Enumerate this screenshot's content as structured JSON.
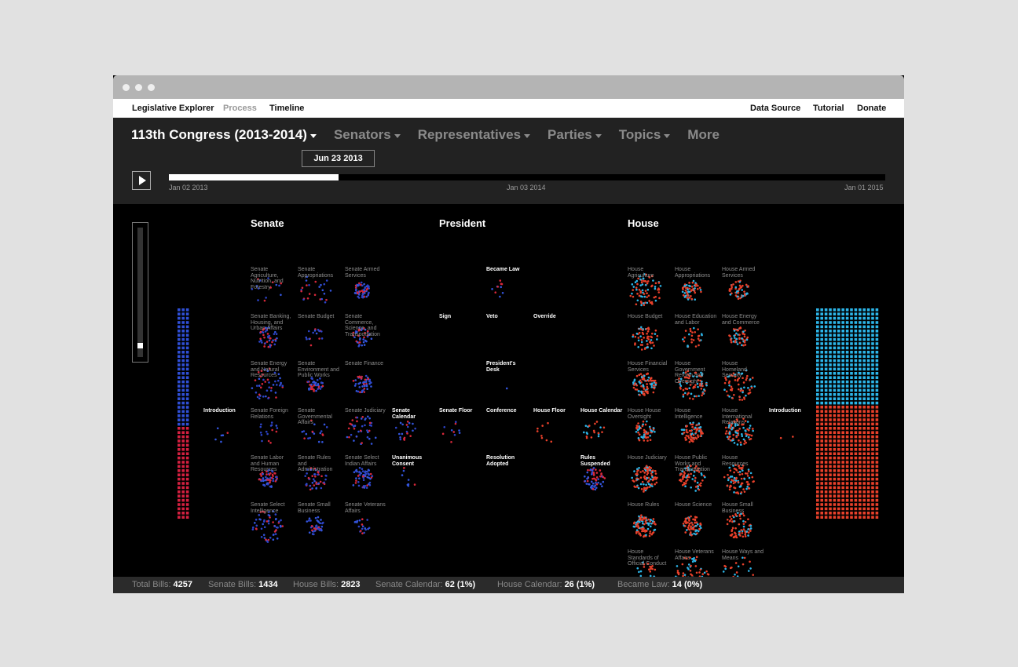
{
  "nav": {
    "left": [
      "Legislative Explorer",
      "Process",
      "Timeline"
    ],
    "right": [
      "Data Source",
      "Tutorial",
      "Donate"
    ]
  },
  "menu": [
    "113th Congress (2013-2014)",
    "Senators",
    "Representatives",
    "Parties",
    "Topics",
    "More"
  ],
  "timeline": {
    "current": "Jun 23 2013",
    "ticks": [
      "Jan 02 2013",
      "Jan 03 2014",
      "Jan 01 2015"
    ]
  },
  "sections": [
    "Senate",
    "President",
    "House"
  ],
  "senate_committees": [
    "Senate Agriculture, Nutrition, and Forestry",
    "Senate Appropriations",
    "Senate Armed Services",
    "Senate Banking, Housing, and Urban Affairs",
    "Senate Budget",
    "Senate Commerce, Science, and Transportation",
    "Senate Energy and Natural Resources",
    "Senate Environment and Public Works",
    "Senate Finance",
    "Senate Foreign Relations",
    "Senate Governmental Affairs",
    "Senate Judiciary",
    "Senate Labor and Human Resources",
    "Senate Rules and Administration",
    "Senate Select Indian Affairs",
    "Senate Select Intelligence",
    "Senate Small Business",
    "Senate Veterans Affairs"
  ],
  "stages": [
    "Introduction",
    "Senate Calendar",
    "Unanimous Consent",
    "Became Law",
    "Sign",
    "Veto",
    "Override",
    "President's Desk",
    "Senate Floor",
    "Conference",
    "House Floor",
    "House Calendar",
    "Resolution Adopted",
    "Rules Suspended",
    "Introduction"
  ],
  "house_committees": [
    "House Agriculture",
    "House Appropriations",
    "House Armed Services",
    "House Budget",
    "House Education and Labor",
    "House Energy and Commerce",
    "House Financial Services",
    "House Government Reform and Oversight",
    "House Homeland Security",
    "House House Oversight",
    "House Intelligence",
    "House International Relations",
    "House Judiciary",
    "House Public Works and Transportation",
    "House Resources",
    "House Rules",
    "House Science",
    "House Small Business",
    "House Standards of Official Conduct",
    "House Veterans Affairs",
    "House Ways and Means"
  ],
  "footer": [
    {
      "label": "Total Bills:",
      "value": "4257"
    },
    {
      "label": "Senate Bills:",
      "value": "1434"
    },
    {
      "label": "House Bills:",
      "value": "2823"
    },
    {
      "label": "Senate Calendar:",
      "value": "62 (1%)"
    },
    {
      "label": "House Calendar:",
      "value": "26 (1%)"
    },
    {
      "label": "Became Law:",
      "value": "14 (0%)"
    }
  ]
}
